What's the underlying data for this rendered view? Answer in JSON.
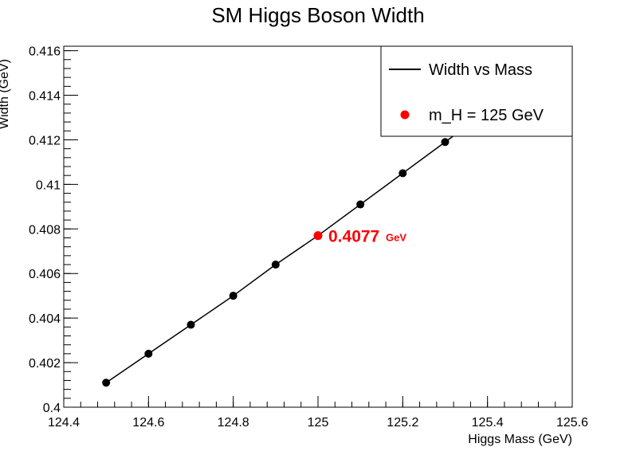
{
  "chart_data": {
    "type": "line",
    "title": "SM Higgs Boson Width",
    "xlabel": "Higgs Mass (GeV)",
    "ylabel": "Width (GeV)",
    "xlim": [
      124.4,
      125.6
    ],
    "ylim": [
      0.4,
      0.4162
    ],
    "xticks": [
      "124.4",
      "124.6",
      "124.8",
      "125",
      "125.2",
      "125.4",
      "125.6"
    ],
    "yticks": [
      "0.4",
      "0.402",
      "0.404",
      "0.406",
      "0.408",
      "0.41",
      "0.412",
      "0.414",
      "0.416"
    ],
    "grid": false,
    "legend_position": "top-right",
    "series": [
      {
        "name": "Width vs Mass",
        "color": "#000000",
        "x": [
          124.5,
          124.6,
          124.7,
          124.8,
          124.9,
          125.0,
          125.1,
          125.2,
          125.3,
          125.4,
          125.5
        ],
        "y": [
          0.4011,
          0.4024,
          0.4037,
          0.405,
          0.4064,
          0.4077,
          0.4091,
          0.4105,
          0.4119,
          0.4133,
          0.4147
        ]
      },
      {
        "name": "m_H = 125 GeV",
        "color": "#ff0000",
        "x": [
          125.0
        ],
        "y": [
          0.4077
        ]
      }
    ],
    "annotation": {
      "value": "0.4077",
      "unit": "GeV",
      "color": "#ff0000",
      "x": 125.0,
      "y": 0.4077
    }
  }
}
